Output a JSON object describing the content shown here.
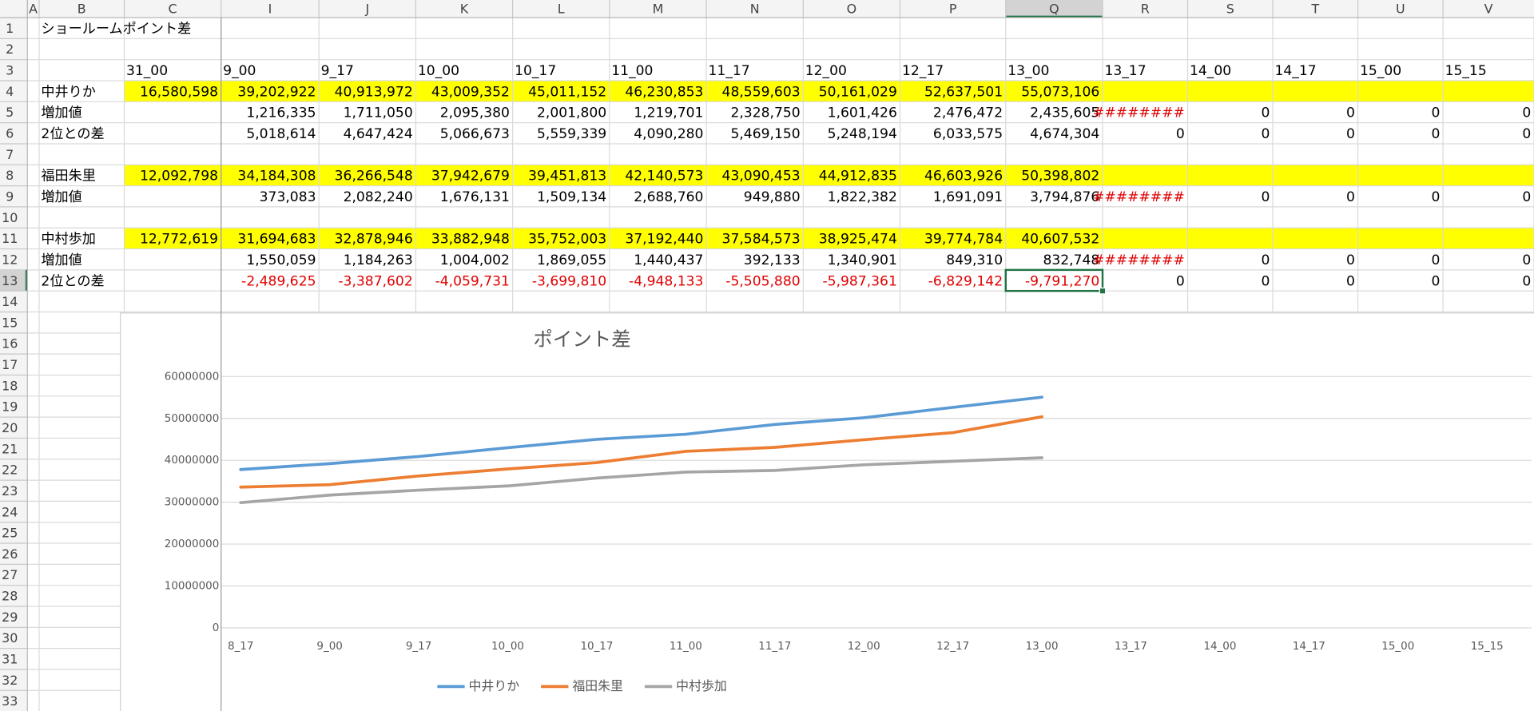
{
  "sheet": {
    "columns": [
      "A",
      "B",
      "C",
      "I",
      "J",
      "K",
      "L",
      "M",
      "N",
      "O",
      "P",
      "Q",
      "R",
      "S",
      "T",
      "U",
      "V"
    ],
    "rows": [
      1,
      2,
      3,
      4,
      5,
      6,
      7,
      8,
      9,
      10,
      11,
      12,
      13,
      14,
      15,
      16,
      17,
      18,
      19,
      20,
      21,
      22,
      23,
      24,
      25,
      26,
      27,
      28,
      29,
      30,
      31,
      32,
      33
    ],
    "fill_rows": {
      "color": "#ffff00",
      "rows": [
        4,
        8,
        11
      ]
    },
    "active_cell": {
      "column": "Q",
      "row": 13
    },
    "cells": {
      "1": {
        "B": "ショールームポイント差"
      },
      "3": {
        "C": "31_00",
        "I": "9_00",
        "J": "9_17",
        "K": "10_00",
        "L": "10_17",
        "M": "11_00",
        "N": "11_17",
        "O": "12_00",
        "P": "12_17",
        "Q": "13_00",
        "R": "13_17",
        "S": "14_00",
        "T": "14_17",
        "U": "15_00",
        "V": "15_15"
      },
      "4": {
        "B": "中井りか",
        "C": "16,580,598",
        "I": "39,202,922",
        "J": "40,913,972",
        "K": "43,009,352",
        "L": "45,011,152",
        "M": "46,230,853",
        "N": "48,559,603",
        "O": "50,161,029",
        "P": "52,637,501",
        "Q": "55,073,106"
      },
      "5": {
        "B": "増加値",
        "I": "1,216,335",
        "J": "1,711,050",
        "K": "2,095,380",
        "L": "2,001,800",
        "M": "1,219,701",
        "N": "2,328,750",
        "O": "1,601,426",
        "P": "2,476,472",
        "Q": "2,435,605",
        "R": "########",
        "S": "0",
        "T": "0",
        "U": "0",
        "V": "0"
      },
      "6": {
        "B": "2位との差",
        "I": "5,018,614",
        "J": "4,647,424",
        "K": "5,066,673",
        "L": "5,559,339",
        "M": "4,090,280",
        "N": "5,469,150",
        "O": "5,248,194",
        "P": "6,033,575",
        "Q": "4,674,304",
        "R": "0",
        "S": "0",
        "T": "0",
        "U": "0",
        "V": "0"
      },
      "8": {
        "B": "福田朱里",
        "C": "12,092,798",
        "I": "34,184,308",
        "J": "36,266,548",
        "K": "37,942,679",
        "L": "39,451,813",
        "M": "42,140,573",
        "N": "43,090,453",
        "O": "44,912,835",
        "P": "46,603,926",
        "Q": "50,398,802"
      },
      "9": {
        "B": "増加値",
        "I": "373,083",
        "J": "2,082,240",
        "K": "1,676,131",
        "L": "1,509,134",
        "M": "2,688,760",
        "N": "949,880",
        "O": "1,822,382",
        "P": "1,691,091",
        "Q": "3,794,876",
        "R": "########",
        "S": "0",
        "T": "0",
        "U": "0",
        "V": "0"
      },
      "11": {
        "B": "中村歩加",
        "C": "12,772,619",
        "I": "31,694,683",
        "J": "32,878,946",
        "K": "33,882,948",
        "L": "35,752,003",
        "M": "37,192,440",
        "N": "37,584,573",
        "O": "38,925,474",
        "P": "39,774,784",
        "Q": "40,607,532"
      },
      "12": {
        "B": "増加値",
        "I": "1,550,059",
        "J": "1,184,263",
        "K": "1,004,002",
        "L": "1,869,055",
        "M": "1,440,437",
        "N": "392,133",
        "O": "1,340,901",
        "P": "849,310",
        "Q": "832,748",
        "R": "########",
        "S": "0",
        "T": "0",
        "U": "0",
        "V": "0"
      },
      "13": {
        "B": "2位との差",
        "I": "-2,489,625",
        "J": "-3,387,602",
        "K": "-4,059,731",
        "L": "-3,699,810",
        "M": "-4,948,133",
        "N": "-5,505,880",
        "O": "-5,987,361",
        "P": "-6,829,142",
        "Q": "-9,791,270",
        "R": "0",
        "S": "0",
        "T": "0",
        "U": "0",
        "V": "0"
      }
    }
  },
  "chart_data": {
    "type": "line",
    "title": "ポイント差",
    "categories": [
      "8_17",
      "9_00",
      "9_17",
      "10_00",
      "10_17",
      "11_00",
      "11_17",
      "12_00",
      "12_17",
      "13_00",
      "13_17",
      "14_00",
      "14_17",
      "15_00",
      "15_15"
    ],
    "series": [
      {
        "name": "中井りか",
        "color": "#5b9bd5",
        "values": [
          37800000,
          39202922,
          40913972,
          43009352,
          45011152,
          46230853,
          48559603,
          50161029,
          52637501,
          55073106,
          null,
          null,
          null,
          null,
          null
        ]
      },
      {
        "name": "福田朱里",
        "color": "#ed7d31",
        "values": [
          33600000,
          34184308,
          36266548,
          37942679,
          39451813,
          42140573,
          43090453,
          44912835,
          46603926,
          50398802,
          null,
          null,
          null,
          null,
          null
        ]
      },
      {
        "name": "中村歩加",
        "color": "#a5a5a5",
        "values": [
          29900000,
          31694683,
          32878946,
          33882948,
          35752003,
          37192440,
          37584573,
          38925474,
          39774784,
          40607532,
          null,
          null,
          null,
          null,
          null
        ]
      }
    ],
    "ylim": [
      0,
      60000000
    ],
    "yticks": [
      0,
      10000000,
      20000000,
      30000000,
      40000000,
      50000000,
      60000000
    ],
    "grid": true,
    "legend": "bottom"
  }
}
